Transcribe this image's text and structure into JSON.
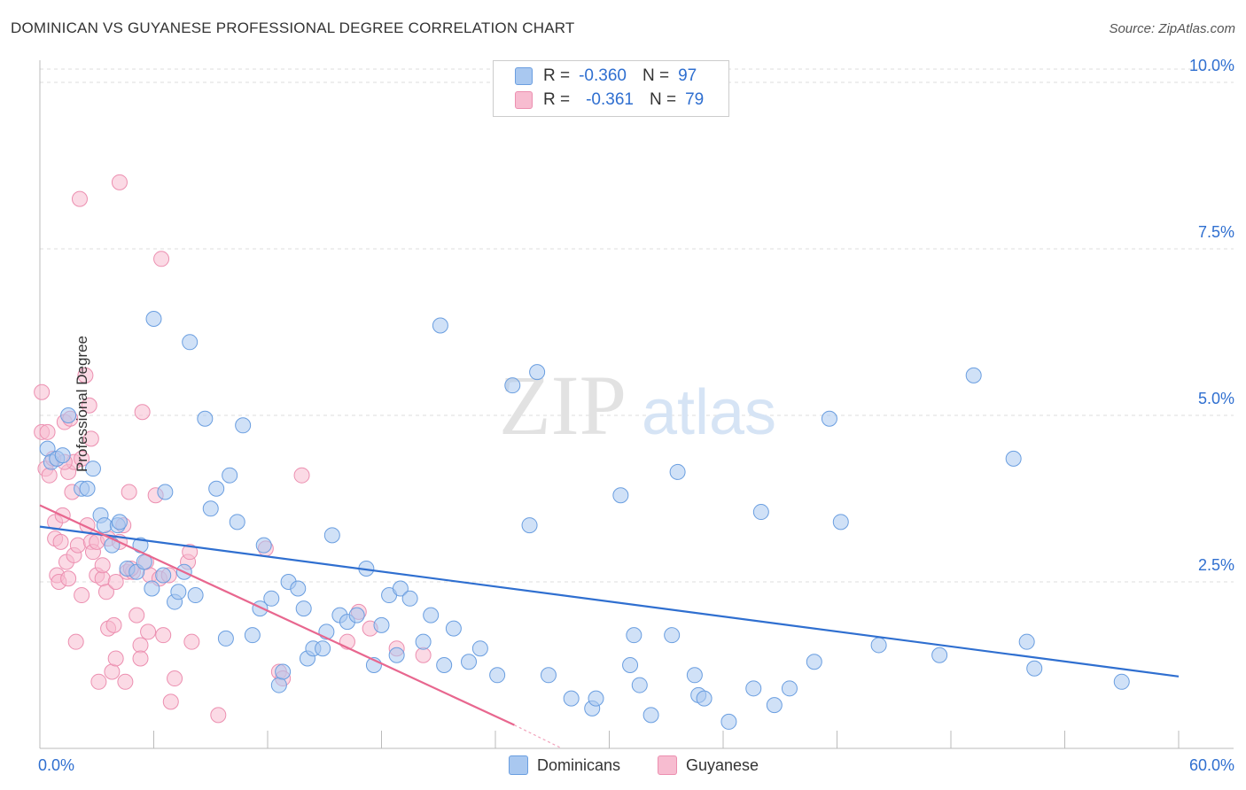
{
  "title": "DOMINICAN VS GUYANESE PROFESSIONAL DEGREE CORRELATION CHART",
  "source": "Source: ZipAtlas.com",
  "watermark": {
    "zip": "ZIP",
    "atlas": "atlas"
  },
  "legend": {
    "dominicans": {
      "r_label": "R =",
      "r_value": "-0.360",
      "n_label": "N =",
      "n_value": "97"
    },
    "guyanese": {
      "r_label": "R =",
      "r_value": "-0.361",
      "n_label": "N =",
      "n_value": "79"
    }
  },
  "bottom_legend": {
    "dominicans": "Dominicans",
    "guyanese": "Guyanese"
  },
  "colors": {
    "dominicans_fill": "#a9c8f0",
    "dominicans_stroke": "#6a9ee0",
    "dominicans_line": "#2f6fd0",
    "guyanese_fill": "#f7bcd0",
    "guyanese_stroke": "#ec8fb0",
    "guyanese_line": "#e8678f",
    "axis_label": "#2f6fd0",
    "grid": "#dddddd"
  },
  "chart_data": {
    "type": "scatter",
    "title": "DOMINICAN VS GUYANESE PROFESSIONAL DEGREE CORRELATION CHART",
    "xlabel": "",
    "ylabel": "Professional Degree",
    "xlim": [
      0,
      60
    ],
    "ylim": [
      0,
      10.2
    ],
    "x_tick_labels": [
      "0.0%",
      "60.0%"
    ],
    "y_ticks": [
      2.5,
      5.0,
      7.5,
      10.0
    ],
    "y_tick_labels": [
      "2.5%",
      "5.0%",
      "7.5%",
      "10.0%"
    ],
    "grid": true,
    "legend_position": "top-center",
    "series": [
      {
        "name": "Dominicans",
        "r": -0.36,
        "n": 97,
        "trend": {
          "x": [
            0,
            60
          ],
          "y": [
            3.33,
            1.08
          ]
        },
        "points": [
          [
            0.4,
            4.5
          ],
          [
            0.6,
            4.3
          ],
          [
            0.9,
            4.35
          ],
          [
            1.2,
            4.4
          ],
          [
            1.5,
            5.0
          ],
          [
            2.2,
            3.9
          ],
          [
            2.5,
            3.9
          ],
          [
            2.8,
            4.2
          ],
          [
            3.2,
            3.5
          ],
          [
            3.4,
            3.35
          ],
          [
            3.8,
            3.05
          ],
          [
            4.1,
            3.35
          ],
          [
            4.2,
            3.4
          ],
          [
            4.6,
            2.7
          ],
          [
            5.1,
            2.65
          ],
          [
            5.3,
            3.05
          ],
          [
            5.5,
            2.8
          ],
          [
            5.9,
            2.4
          ],
          [
            6.0,
            6.45
          ],
          [
            6.5,
            2.6
          ],
          [
            6.6,
            3.85
          ],
          [
            7.1,
            2.2
          ],
          [
            7.3,
            2.35
          ],
          [
            7.6,
            2.65
          ],
          [
            7.9,
            6.1
          ],
          [
            8.2,
            2.3
          ],
          [
            8.7,
            4.95
          ],
          [
            9.0,
            3.6
          ],
          [
            9.3,
            3.9
          ],
          [
            9.8,
            1.65
          ],
          [
            10.0,
            4.1
          ],
          [
            10.4,
            3.4
          ],
          [
            10.7,
            4.85
          ],
          [
            11.2,
            1.7
          ],
          [
            11.6,
            2.1
          ],
          [
            11.8,
            3.05
          ],
          [
            12.2,
            2.25
          ],
          [
            12.6,
            0.95
          ],
          [
            12.8,
            1.15
          ],
          [
            13.1,
            2.5
          ],
          [
            13.6,
            2.4
          ],
          [
            13.9,
            2.1
          ],
          [
            14.1,
            1.35
          ],
          [
            14.4,
            1.5
          ],
          [
            14.9,
            1.5
          ],
          [
            15.1,
            1.75
          ],
          [
            15.4,
            3.2
          ],
          [
            15.8,
            2.0
          ],
          [
            16.2,
            1.9
          ],
          [
            16.7,
            2.0
          ],
          [
            17.2,
            2.7
          ],
          [
            17.6,
            1.25
          ],
          [
            18.0,
            1.85
          ],
          [
            18.4,
            2.3
          ],
          [
            18.8,
            1.4
          ],
          [
            19.0,
            2.4
          ],
          [
            19.5,
            2.25
          ],
          [
            20.2,
            1.6
          ],
          [
            20.6,
            2.0
          ],
          [
            21.1,
            6.35
          ],
          [
            21.3,
            1.25
          ],
          [
            21.8,
            1.8
          ],
          [
            22.6,
            1.3
          ],
          [
            23.2,
            1.5
          ],
          [
            24.1,
            1.1
          ],
          [
            24.9,
            5.45
          ],
          [
            25.8,
            3.35
          ],
          [
            26.2,
            5.65
          ],
          [
            26.8,
            1.1
          ],
          [
            28.0,
            0.75
          ],
          [
            29.1,
            0.6
          ],
          [
            29.3,
            0.75
          ],
          [
            30.6,
            3.8
          ],
          [
            31.1,
            1.25
          ],
          [
            31.3,
            1.7
          ],
          [
            31.6,
            0.95
          ],
          [
            32.2,
            0.5
          ],
          [
            33.3,
            1.7
          ],
          [
            33.6,
            4.15
          ],
          [
            34.5,
            1.1
          ],
          [
            34.7,
            0.8
          ],
          [
            35.0,
            0.75
          ],
          [
            36.3,
            0.4
          ],
          [
            37.6,
            0.9
          ],
          [
            38.0,
            3.55
          ],
          [
            38.7,
            0.65
          ],
          [
            39.5,
            0.9
          ],
          [
            40.8,
            1.3
          ],
          [
            41.6,
            4.95
          ],
          [
            42.2,
            3.4
          ],
          [
            44.2,
            1.55
          ],
          [
            47.4,
            1.4
          ],
          [
            49.2,
            5.6
          ],
          [
            51.3,
            4.35
          ],
          [
            52.0,
            1.6
          ],
          [
            52.4,
            1.2
          ],
          [
            57.0,
            1.0
          ]
        ]
      },
      {
        "name": "Guyanese",
        "r": -0.361,
        "n": 79,
        "trend": {
          "x": [
            0,
            25
          ],
          "y": [
            3.65,
            0.35
          ]
        },
        "trend_dashed": {
          "x": [
            25,
            27.5
          ],
          "y": [
            0.35,
            0.0
          ]
        },
        "points": [
          [
            0.1,
            4.75
          ],
          [
            0.1,
            5.35
          ],
          [
            0.3,
            4.2
          ],
          [
            0.4,
            4.75
          ],
          [
            0.5,
            4.1
          ],
          [
            0.7,
            4.35
          ],
          [
            0.8,
            3.15
          ],
          [
            0.8,
            3.4
          ],
          [
            0.9,
            2.6
          ],
          [
            1.0,
            2.5
          ],
          [
            1.1,
            3.1
          ],
          [
            1.2,
            3.5
          ],
          [
            1.3,
            4.9
          ],
          [
            1.4,
            2.8
          ],
          [
            1.5,
            4.15
          ],
          [
            1.5,
            2.55
          ],
          [
            1.6,
            4.95
          ],
          [
            1.7,
            3.85
          ],
          [
            1.8,
            4.3
          ],
          [
            1.8,
            2.9
          ],
          [
            1.9,
            1.6
          ],
          [
            2.0,
            3.05
          ],
          [
            2.1,
            8.25
          ],
          [
            2.2,
            2.3
          ],
          [
            2.2,
            4.35
          ],
          [
            2.4,
            5.6
          ],
          [
            2.5,
            3.35
          ],
          [
            2.6,
            5.15
          ],
          [
            2.7,
            3.1
          ],
          [
            2.7,
            4.65
          ],
          [
            2.8,
            2.95
          ],
          [
            3.0,
            2.6
          ],
          [
            3.0,
            3.1
          ],
          [
            3.1,
            1.0
          ],
          [
            3.3,
            2.55
          ],
          [
            3.3,
            2.75
          ],
          [
            3.5,
            2.35
          ],
          [
            3.6,
            3.15
          ],
          [
            3.6,
            1.8
          ],
          [
            3.8,
            1.15
          ],
          [
            3.9,
            1.85
          ],
          [
            4.0,
            2.5
          ],
          [
            4.0,
            1.35
          ],
          [
            4.2,
            3.1
          ],
          [
            4.2,
            8.5
          ],
          [
            4.4,
            3.35
          ],
          [
            4.5,
            1.0
          ],
          [
            4.6,
            2.65
          ],
          [
            4.7,
            3.85
          ],
          [
            4.9,
            2.65
          ],
          [
            5.1,
            2.0
          ],
          [
            5.3,
            1.55
          ],
          [
            5.3,
            1.35
          ],
          [
            5.4,
            5.05
          ],
          [
            5.6,
            2.8
          ],
          [
            5.7,
            1.75
          ],
          [
            5.8,
            2.6
          ],
          [
            6.1,
            3.8
          ],
          [
            6.3,
            2.55
          ],
          [
            6.4,
            7.35
          ],
          [
            6.5,
            1.7
          ],
          [
            6.8,
            2.6
          ],
          [
            6.9,
            0.7
          ],
          [
            7.1,
            1.05
          ],
          [
            7.8,
            2.8
          ],
          [
            7.9,
            2.95
          ],
          [
            8.0,
            1.6
          ],
          [
            9.4,
            0.5
          ],
          [
            11.9,
            3.0
          ],
          [
            12.6,
            1.15
          ],
          [
            12.8,
            1.05
          ],
          [
            13.8,
            4.1
          ],
          [
            16.2,
            1.6
          ],
          [
            16.8,
            2.05
          ],
          [
            17.4,
            1.8
          ],
          [
            18.8,
            1.5
          ],
          [
            20.2,
            1.4
          ],
          [
            1.3,
            4.3
          ],
          [
            4.8,
            2.7
          ]
        ]
      }
    ]
  }
}
